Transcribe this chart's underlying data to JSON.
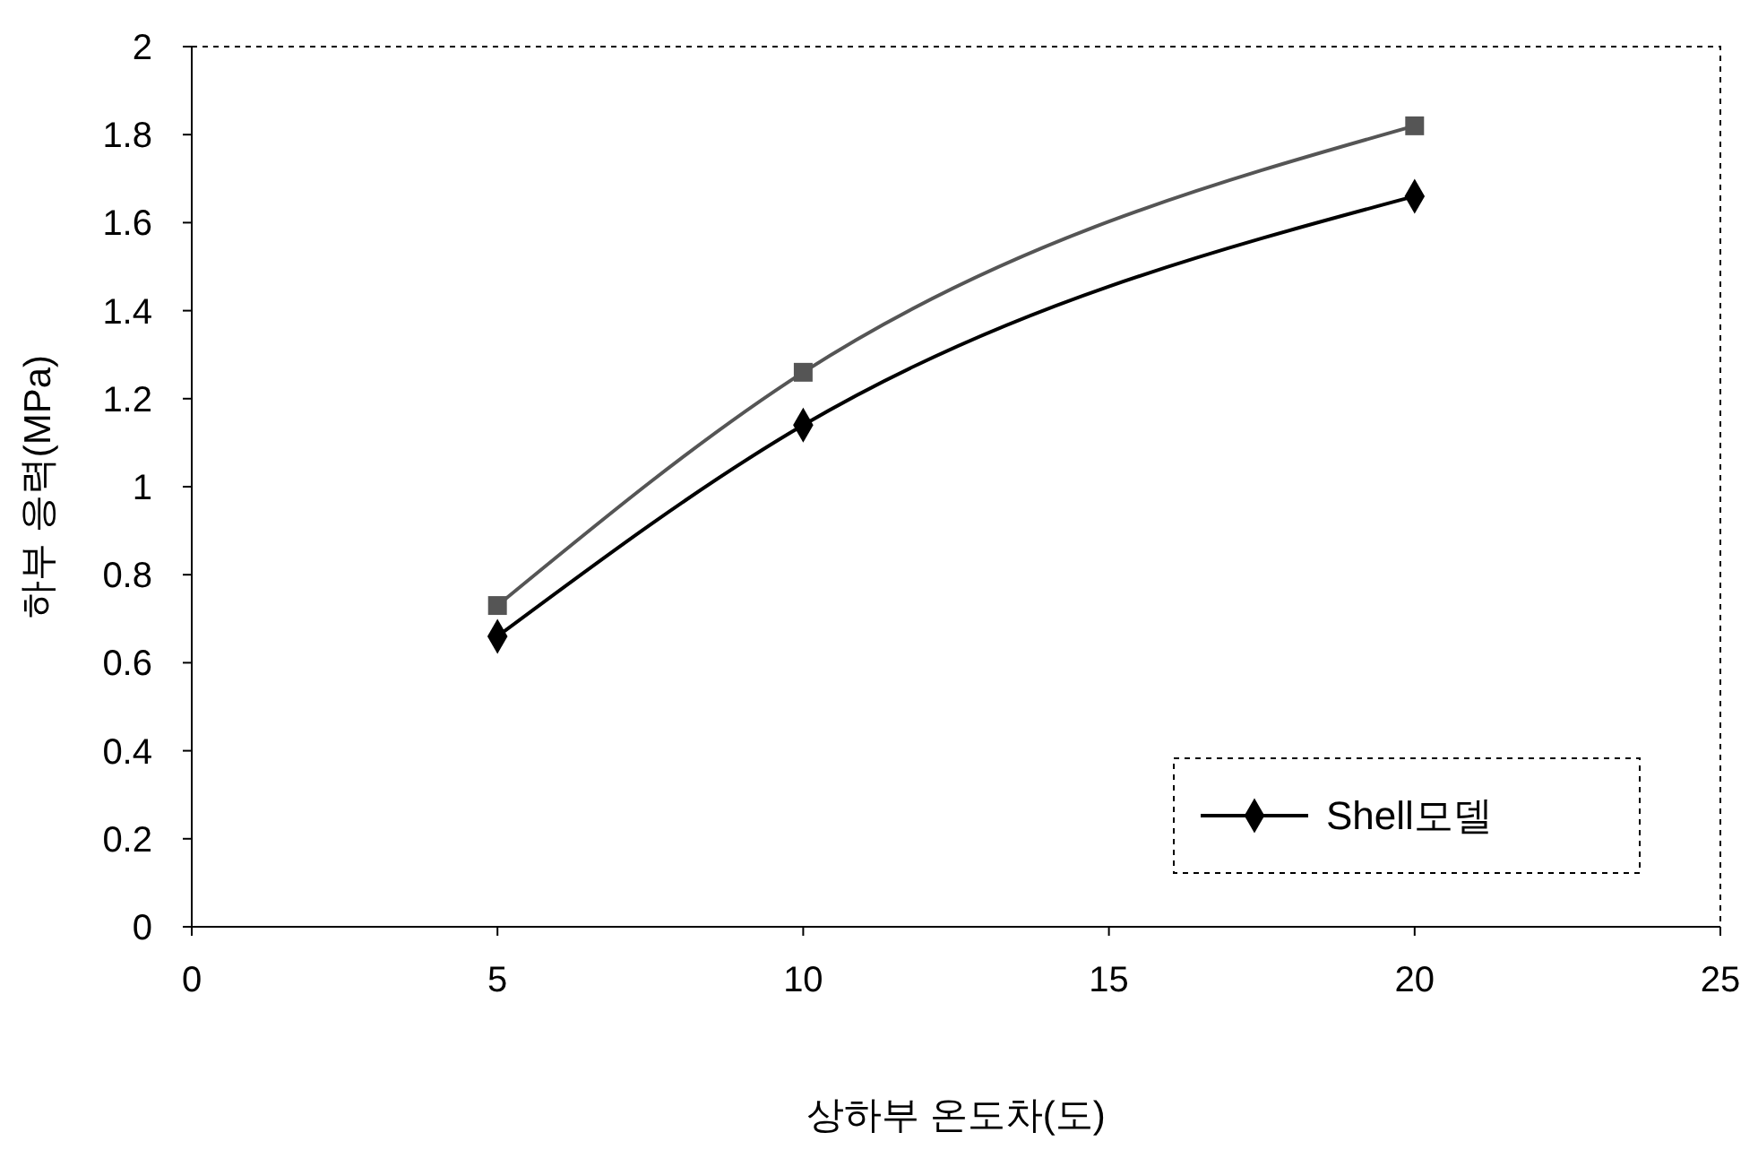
{
  "chart_data": {
    "type": "line",
    "xlabel": "상하부 온도차(도)",
    "ylabel": "하부 응력(MPa)",
    "x": [
      5,
      10,
      20
    ],
    "series": [
      {
        "name": "Shell모델",
        "color": "#000000",
        "marker": "diamond",
        "values": [
          0.66,
          1.14,
          1.66
        ]
      },
      {
        "color": "#555555",
        "marker": "square",
        "values": [
          0.73,
          1.26,
          1.82
        ]
      }
    ],
    "xlim": [
      0,
      25
    ],
    "xticks": [
      0,
      5,
      10,
      15,
      20,
      25
    ],
    "ylim": [
      0,
      2
    ],
    "yticks": [
      0,
      0.2,
      0.4,
      0.6,
      0.8,
      1,
      1.2,
      1.4,
      1.6,
      1.8,
      2
    ],
    "grid": false,
    "legend": "bottom right"
  }
}
